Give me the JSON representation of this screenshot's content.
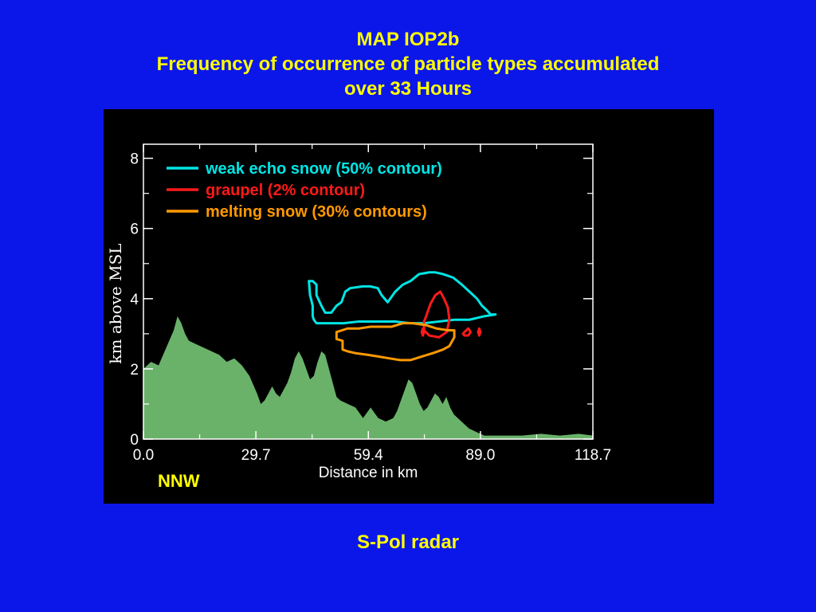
{
  "slide": {
    "title_line1": "MAP IOP2b",
    "title_line2": "Frequency of occurrence of particle types accumulated",
    "title_line3": "over 33 Hours",
    "footer": "S-Pol radar"
  },
  "colors": {
    "background": "#0b17e8",
    "title": "#ffff00",
    "panel": "#000000",
    "terrain": "#6ab26a",
    "snow": "#00e5e5",
    "graupel": "#ff1a1a",
    "melting": "#ff9900",
    "axes": "#ffffff",
    "direction_label": "#ffff00"
  },
  "chart_data": {
    "type": "area",
    "xlabel": "Distance in km",
    "ylabel": "km above MSL",
    "xlim": [
      0,
      118.7
    ],
    "ylim": [
      0,
      8.4
    ],
    "x_ticks": [
      0.0,
      29.7,
      59.4,
      89.0,
      118.7
    ],
    "x_tick_labels": [
      "0.0",
      "29.7",
      "59.4",
      "89.0",
      "118.7"
    ],
    "y_ticks": [
      0,
      2,
      4,
      6,
      8
    ],
    "y_tick_labels": [
      "0",
      "2",
      "4",
      "6",
      "8"
    ],
    "direction_label": "NNW",
    "legend_position": "top-left",
    "legend": [
      {
        "name": "weak echo snow (50% contour)",
        "color_key": "snow"
      },
      {
        "name": "graupel (2% contour)",
        "color_key": "graupel"
      },
      {
        "name": "melting snow (30% contours)",
        "color_key": "melting"
      }
    ],
    "terrain": {
      "name": "terrain",
      "x": [
        0,
        2,
        4,
        6,
        8,
        9,
        10,
        11,
        12,
        14,
        16,
        18,
        20,
        22,
        24,
        26,
        28,
        30,
        31,
        32,
        33,
        34,
        35,
        36,
        37,
        38,
        39,
        40,
        41,
        42,
        43,
        44,
        45,
        46,
        47,
        48,
        49,
        50,
        51,
        52,
        54,
        56,
        58,
        60,
        62,
        64,
        66,
        67,
        68,
        69,
        70,
        71,
        72,
        73,
        74,
        75,
        76,
        77,
        78,
        79,
        80,
        81,
        82,
        84,
        86,
        88,
        90,
        92,
        95,
        100,
        105,
        110,
        115,
        118.7
      ],
      "y": [
        2.0,
        2.2,
        2.1,
        2.6,
        3.1,
        3.5,
        3.3,
        3.0,
        2.8,
        2.7,
        2.6,
        2.5,
        2.4,
        2.2,
        2.3,
        2.1,
        1.8,
        1.3,
        1.0,
        1.1,
        1.3,
        1.5,
        1.3,
        1.2,
        1.4,
        1.6,
        1.9,
        2.3,
        2.5,
        2.3,
        2.0,
        1.7,
        1.8,
        2.2,
        2.5,
        2.4,
        2.0,
        1.6,
        1.2,
        1.1,
        1.0,
        0.9,
        0.6,
        0.9,
        0.6,
        0.5,
        0.6,
        0.8,
        1.1,
        1.4,
        1.7,
        1.6,
        1.3,
        1.0,
        0.8,
        0.9,
        1.1,
        1.3,
        1.2,
        1.0,
        1.2,
        0.9,
        0.7,
        0.5,
        0.3,
        0.2,
        0.1,
        0.1,
        0.1,
        0.1,
        0.15,
        0.1,
        0.15,
        0.1
      ]
    },
    "contours": [
      {
        "name": "weak echo snow (50% contour)",
        "color_key": "snow",
        "x": [
          44.7,
          45.7,
          45.7,
          47.0,
          48.0,
          49.6,
          51.0,
          52.3,
          53.3,
          54.6,
          57.9,
          59.9,
          61.9,
          62.9,
          64.5,
          66.5,
          68.5,
          70.5,
          72.8,
          75.5,
          77.1,
          79.1,
          81.8,
          84.1,
          86.1,
          88.1,
          89.4,
          90.4,
          91.7,
          93.0,
          90.0,
          86.1,
          82.1,
          78.1,
          74.1,
          70.5,
          66.5,
          62.9,
          59.9,
          56.9,
          52.9,
          49.6,
          47.3,
          45.7,
          45.0,
          44.7,
          44.7,
          44.0,
          43.7,
          44.7
        ],
        "y": [
          4.5,
          4.4,
          4.1,
          3.8,
          3.6,
          3.6,
          3.8,
          3.9,
          4.2,
          4.3,
          4.35,
          4.35,
          4.3,
          4.1,
          3.9,
          4.2,
          4.4,
          4.5,
          4.7,
          4.75,
          4.75,
          4.7,
          4.6,
          4.4,
          4.2,
          4.0,
          3.8,
          3.7,
          3.55,
          3.55,
          3.5,
          3.4,
          3.4,
          3.35,
          3.3,
          3.3,
          3.35,
          3.35,
          3.35,
          3.35,
          3.3,
          3.3,
          3.3,
          3.3,
          3.4,
          3.5,
          3.8,
          4.1,
          4.5,
          4.5
        ]
      },
      {
        "name": "graupel (2% contour)",
        "color_key": "graupel",
        "x": [
          74.5,
          75.8,
          77.1,
          78.4,
          79.4,
          80.4,
          80.8,
          80.1,
          78.1,
          75.5,
          74.1,
          74.1,
          74.5
        ],
        "y": [
          3.45,
          3.85,
          4.1,
          4.2,
          4.0,
          3.75,
          3.4,
          3.05,
          2.9,
          2.95,
          3.1,
          3.35,
          3.45
        ]
      },
      {
        "name": "graupel (2% contour)",
        "color_key": "graupel",
        "x": [
          73.5,
          73.8,
          74.1,
          73.8,
          73.5
        ],
        "y": [
          3.05,
          3.15,
          3.05,
          2.95,
          3.05
        ]
      },
      {
        "name": "graupel (2% contour)",
        "color_key": "graupel",
        "x": [
          84.8,
          85.8,
          86.4,
          85.8,
          84.8,
          84.4,
          84.8
        ],
        "y": [
          3.05,
          3.15,
          3.05,
          2.95,
          2.95,
          3.0,
          3.05
        ]
      },
      {
        "name": "graupel (2% contour)",
        "color_key": "graupel",
        "x": [
          88.4,
          88.7,
          89.0,
          88.7,
          88.4
        ],
        "y": [
          3.05,
          3.15,
          3.05,
          2.95,
          3.05
        ]
      },
      {
        "name": "melting snow (30% contours)",
        "color_key": "melting",
        "x": [
          51.0,
          53.9,
          56.9,
          59.9,
          62.9,
          65.5,
          68.5,
          71.1,
          74.5,
          77.4,
          80.4,
          82.1,
          82.1,
          80.8,
          79.1,
          76.5,
          73.5,
          70.5,
          67.8,
          64.9,
          62.2,
          59.2,
          55.9,
          53.9,
          52.6,
          52.6,
          51.0,
          51.0
        ],
        "y": [
          3.05,
          3.15,
          3.15,
          3.2,
          3.2,
          3.2,
          3.3,
          3.3,
          3.25,
          3.15,
          3.1,
          3.1,
          2.9,
          2.65,
          2.55,
          2.45,
          2.35,
          2.25,
          2.25,
          2.3,
          2.35,
          2.4,
          2.45,
          2.5,
          2.55,
          2.8,
          2.85,
          3.05
        ]
      }
    ]
  }
}
